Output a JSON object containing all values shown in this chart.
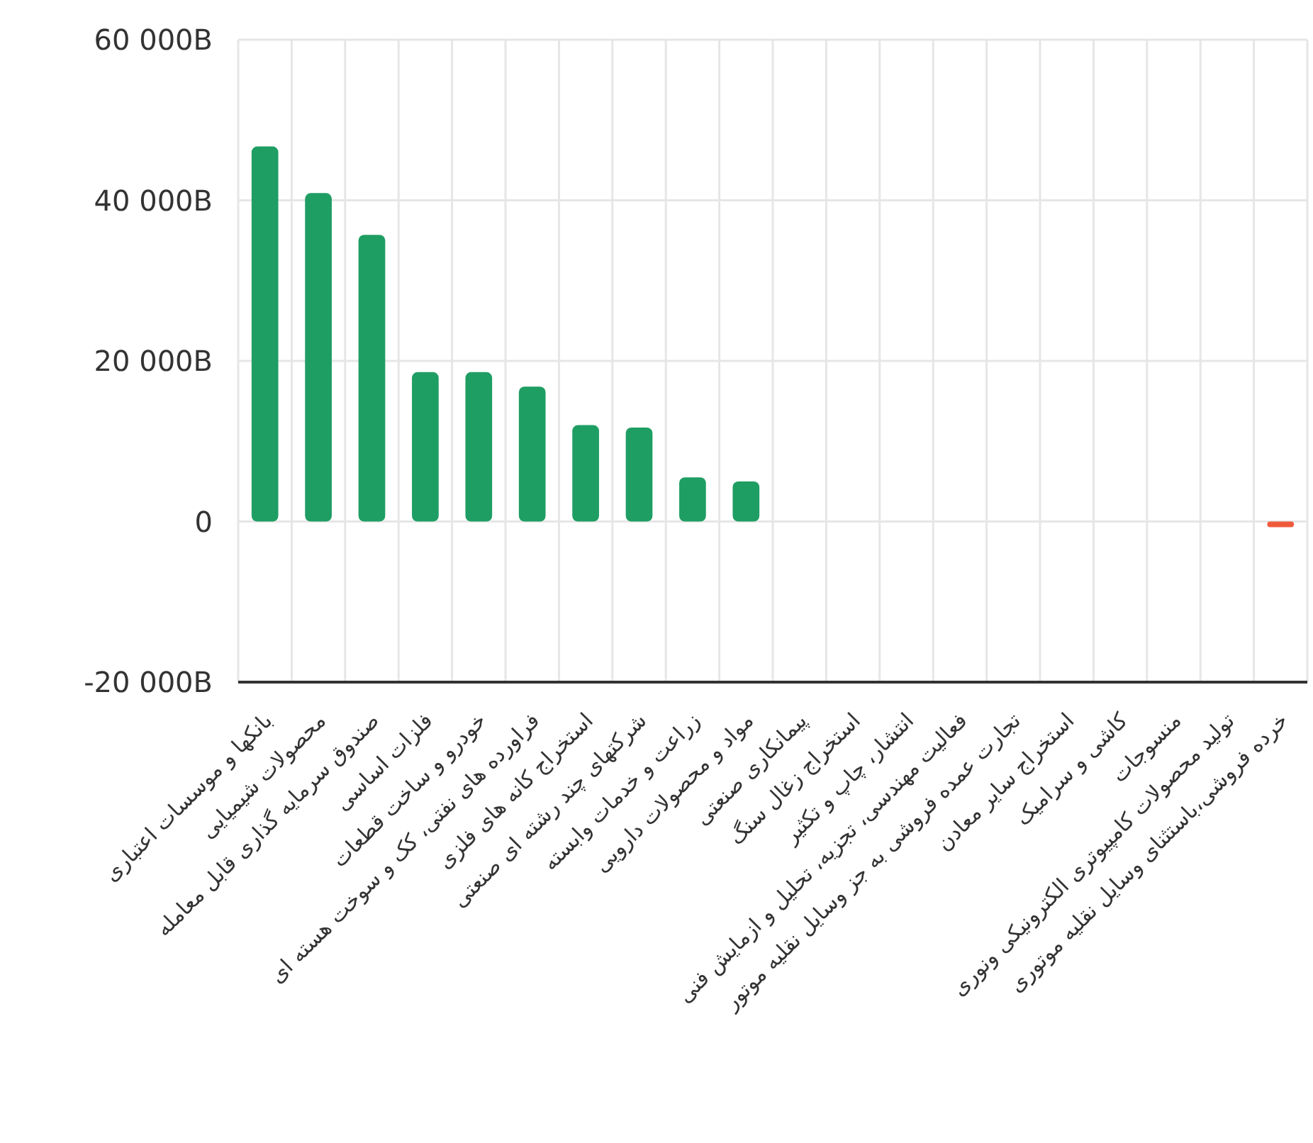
{
  "chart_data": {
    "type": "bar",
    "categories": [
      "بانکها و موسسات اعتباری",
      "محصولات شیمیایی",
      "صندوق سرمایه گذاری قابل معامله",
      "فلزات اساسی",
      "خودرو و ساخت قطعات",
      "فراورده های نفتی، کک و سوخت هسته ای",
      "استخراج کانه های فلزی",
      "شرکتهای چند رشته ای صنعتی",
      "زراعت و خدمات وابسته",
      "مواد و محصولات دارویی",
      "پیمانکاری صنعتی",
      "استخراج زغال سنگ",
      "انتشار، چاپ و تکثیر",
      "فعالیت مهندسی، تجزیه، تحلیل و ازمایش فنی",
      "تجارت عمده فروشی به جز وسایل نقلیه موتور",
      "استخراج سایر معادن",
      "کاشی و سرامیک",
      "منسوجات",
      "تولید محصولات کامپیوتری الکترونیکی ونوری",
      "خرده فروشی،باستثنای وسایل نقلیه موتوری"
    ],
    "values": [
      46700,
      40900,
      35700,
      18600,
      18600,
      16800,
      12000,
      11700,
      5500,
      5000,
      0,
      0,
      0,
      0,
      0,
      0,
      0,
      0,
      0,
      -700
    ],
    "colors": [
      "#1f9e63",
      "#1f9e63",
      "#1f9e63",
      "#1f9e63",
      "#1f9e63",
      "#1f9e63",
      "#1f9e63",
      "#1f9e63",
      "#1f9e63",
      "#1f9e63",
      "#1f9e63",
      "#1f9e63",
      "#1f9e63",
      "#1f9e63",
      "#1f9e63",
      "#1f9e63",
      "#1f9e63",
      "#1f9e63",
      "#1f9e63",
      "#f05a3c"
    ],
    "ylim": [
      -20000,
      60000
    ],
    "yticks": [
      {
        "value": -20000,
        "label": "-20 000B"
      },
      {
        "value": 0,
        "label": "0"
      },
      {
        "value": 20000,
        "label": "20 000B"
      },
      {
        "value": 40000,
        "label": "40 000B"
      },
      {
        "value": 60000,
        "label": "60 000B"
      }
    ],
    "grid": true
  }
}
